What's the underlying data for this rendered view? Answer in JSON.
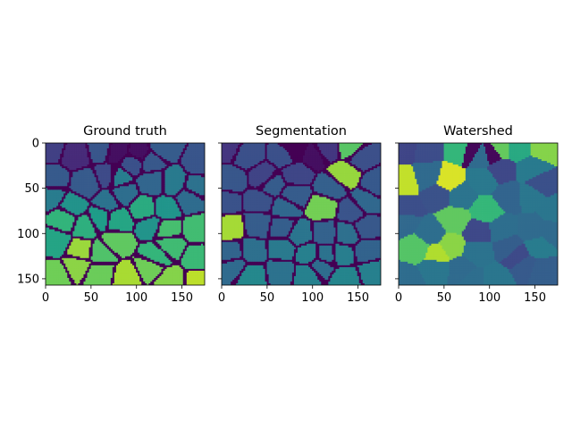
{
  "chart_data": [
    {
      "type": "heatmap",
      "title": "Ground truth",
      "colormap": "viridis",
      "xlim": [
        0,
        175
      ],
      "ylim": [
        157,
        0
      ],
      "x_ticks": [
        "0",
        "50",
        "100",
        "150"
      ],
      "y_ticks": [
        "0",
        "50",
        "100",
        "150"
      ],
      "show_y_tick_labels": true
    },
    {
      "type": "heatmap",
      "title": "Segmentation",
      "colormap": "viridis",
      "xlim": [
        0,
        175
      ],
      "ylim": [
        157,
        0
      ],
      "x_ticks": [
        "0",
        "50",
        "100",
        "150"
      ],
      "y_ticks": [
        "0",
        "50",
        "100",
        "150"
      ],
      "show_y_tick_labels": false
    },
    {
      "type": "heatmap",
      "title": "Watershed",
      "colormap": "viridis",
      "xlim": [
        0,
        175
      ],
      "ylim": [
        157,
        0
      ],
      "x_ticks": [
        "0",
        "50",
        "100",
        "150"
      ],
      "y_ticks": [
        "0",
        "50",
        "100",
        "150"
      ],
      "show_y_tick_labels": false
    }
  ]
}
